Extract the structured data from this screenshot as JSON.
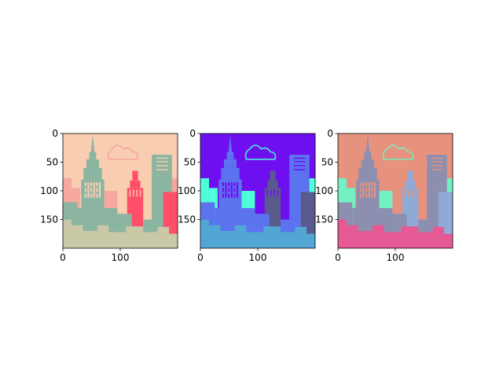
{
  "chart_data": [
    {
      "type": "image",
      "title": "",
      "xlabel": "",
      "ylabel": "",
      "xlim": [
        0,
        200
      ],
      "ylim": [
        200,
        0
      ],
      "x_ticks": [
        0,
        100
      ],
      "y_ticks": [
        0,
        50,
        100,
        150
      ],
      "palette": {
        "sky": "#f9cdb0",
        "cloud": "#f5a7a0",
        "bg_building": "#f5a7a0",
        "tower": "#8bb5a1",
        "tower_window": "#f9cdb0",
        "red_building": "#ff4f6a",
        "red_right": "#ff4f6a",
        "right_tower": "#8bb5a1",
        "right_tower_lines": "#f9cdb0",
        "midground": "#8bb5a1",
        "ground": "#c9c8a7"
      }
    },
    {
      "type": "image",
      "title": "",
      "xlabel": "",
      "ylabel": "",
      "xlim": [
        0,
        200
      ],
      "ylim": [
        200,
        0
      ],
      "x_ticks": [
        0,
        100
      ],
      "y_ticks": [
        0,
        50,
        100,
        150
      ],
      "palette": {
        "sky": "#6d0fef",
        "cloud": "#4fe9d9",
        "bg_building": "#4fffd9",
        "tower": "#5c73f0",
        "tower_window": "#6d0fef",
        "red_building": "#5a5a8c",
        "red_right": "#5a5a8c",
        "right_tower": "#5c73f0",
        "right_tower_lines": "#6d0fef",
        "midground": "#5c73f0",
        "ground": "#52a6d6"
      }
    },
    {
      "type": "image",
      "title": "",
      "xlabel": "",
      "ylabel": "",
      "xlim": [
        0,
        200
      ],
      "ylim": [
        200,
        0
      ],
      "x_ticks": [
        0,
        100
      ],
      "y_ticks": [
        0,
        50,
        100,
        150
      ],
      "palette": {
        "sky": "#e6927f",
        "cloud": "#7fe8b8",
        "bg_building": "#72f2c2",
        "tower": "#8c8fb0",
        "tower_window": "#e6927f",
        "red_building": "#8faad4",
        "red_right": "#8faad4",
        "right_tower": "#8c8fb0",
        "right_tower_lines": "#e6927f",
        "midground": "#8c8fb0",
        "ground": "#e55a94"
      }
    }
  ]
}
